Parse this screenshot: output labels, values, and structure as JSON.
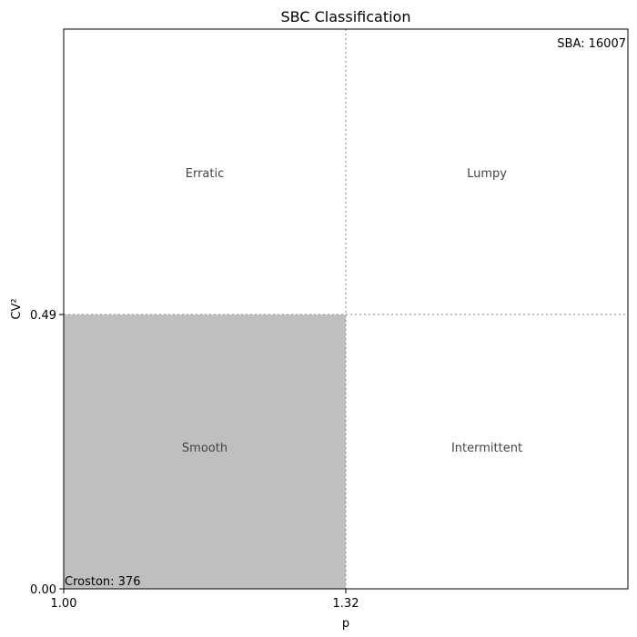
{
  "chart_data": {
    "type": "quadrant",
    "title": "SBC Classification",
    "xlabel": "p",
    "ylabel": "CV²",
    "xlim": [
      1.0,
      1.64
    ],
    "ylim": [
      0,
      1.0
    ],
    "xticks": [
      {
        "value": 1.0,
        "label": "1.00"
      },
      {
        "value": 1.32,
        "label": "1.32"
      }
    ],
    "yticks": [
      {
        "value": 0,
        "label": "0.00"
      },
      {
        "value": 0.49,
        "label": "0.49"
      }
    ],
    "x_threshold": 1.32,
    "y_threshold": 0.49,
    "shade_color": "#bfbfbf",
    "quadrants": [
      "Erratic",
      "Lumpy",
      "Smooth",
      "Intermittent"
    ],
    "annotations": [
      "SBA: 16007",
      "Croston: 376"
    ]
  }
}
